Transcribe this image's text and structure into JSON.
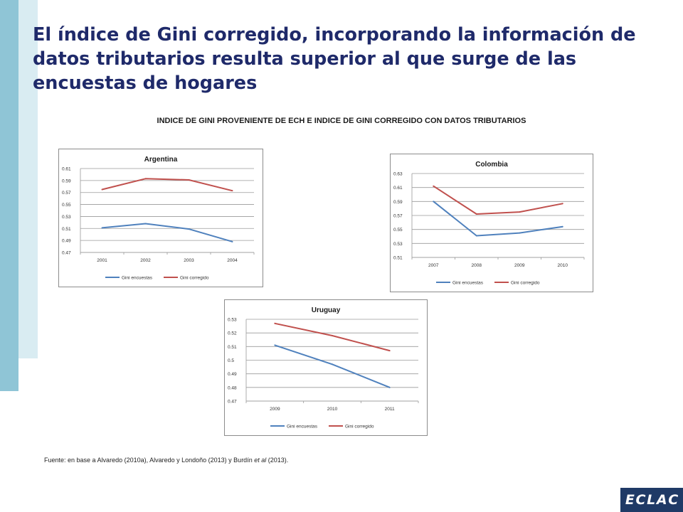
{
  "slide": {
    "title": "El índice de Gini corregido, incorporando la información de datos tributarios resulta superior al que surge de las encuestas de hogares",
    "heading": "INDICE DE GINI PROVENIENTE DE ECH E INDICE DE  GINI CORREGIDO CON DATOS TRIBUTARIOS",
    "source_prefix": "Fuente: en base a Alvaredo (2010a), Alvaredo y Londoño (2013) y Burdín ",
    "source_italic": "et al",
    "source_suffix": " (2013).",
    "logo_letters": [
      "E",
      "C",
      "L",
      "A",
      "C"
    ]
  },
  "colors": {
    "encuestas": "#4f81bd",
    "corregido": "#c0504d",
    "accent_dark": "#8fc5d6",
    "accent_light": "#d9ecf2",
    "title": "#1f2a6a",
    "logo": "#1f3a66"
  },
  "chart_data": [
    {
      "type": "line",
      "title": "Argentina",
      "categories": [
        "2001",
        "2002",
        "2003",
        "2004"
      ],
      "ylim": [
        0.47,
        0.61
      ],
      "yticks": [
        "0.47",
        "0.49",
        "0.51",
        "0.53",
        "0.55",
        "0.57",
        "0.59",
        "0.61"
      ],
      "series": [
        {
          "name": "Gini encuestas",
          "values": [
            0.511,
            0.518,
            0.509,
            0.488
          ]
        },
        {
          "name": "Gini corregido",
          "values": [
            0.575,
            0.593,
            0.591,
            0.573
          ]
        }
      ],
      "grid": true,
      "legend": "bottom"
    },
    {
      "type": "line",
      "title": "Colombia",
      "categories": [
        "2007",
        "2008",
        "2009",
        "2010"
      ],
      "ylim": [
        0.51,
        0.63
      ],
      "yticks": [
        "0.51",
        "0.53",
        "0.55",
        "0.57",
        "0.59",
        "0.61",
        "0.63"
      ],
      "series": [
        {
          "name": "Gini encuestas",
          "values": [
            0.59,
            0.541,
            0.545,
            0.554
          ]
        },
        {
          "name": "Gini corregido",
          "values": [
            0.612,
            0.572,
            0.575,
            0.587
          ]
        }
      ],
      "grid": true,
      "legend": "bottom"
    },
    {
      "type": "line",
      "title": "Uruguay",
      "categories": [
        "2009",
        "2010",
        "2011"
      ],
      "ylim": [
        0.47,
        0.53
      ],
      "yticks": [
        "0.47",
        "0.48",
        "0.49",
        "0.5",
        "0.51",
        "0.52",
        "0.53"
      ],
      "series": [
        {
          "name": "Gini encuestas",
          "values": [
            0.511,
            0.497,
            0.48
          ]
        },
        {
          "name": "Gini corregido",
          "values": [
            0.527,
            0.518,
            0.507
          ]
        }
      ],
      "grid": true,
      "legend": "bottom"
    }
  ]
}
